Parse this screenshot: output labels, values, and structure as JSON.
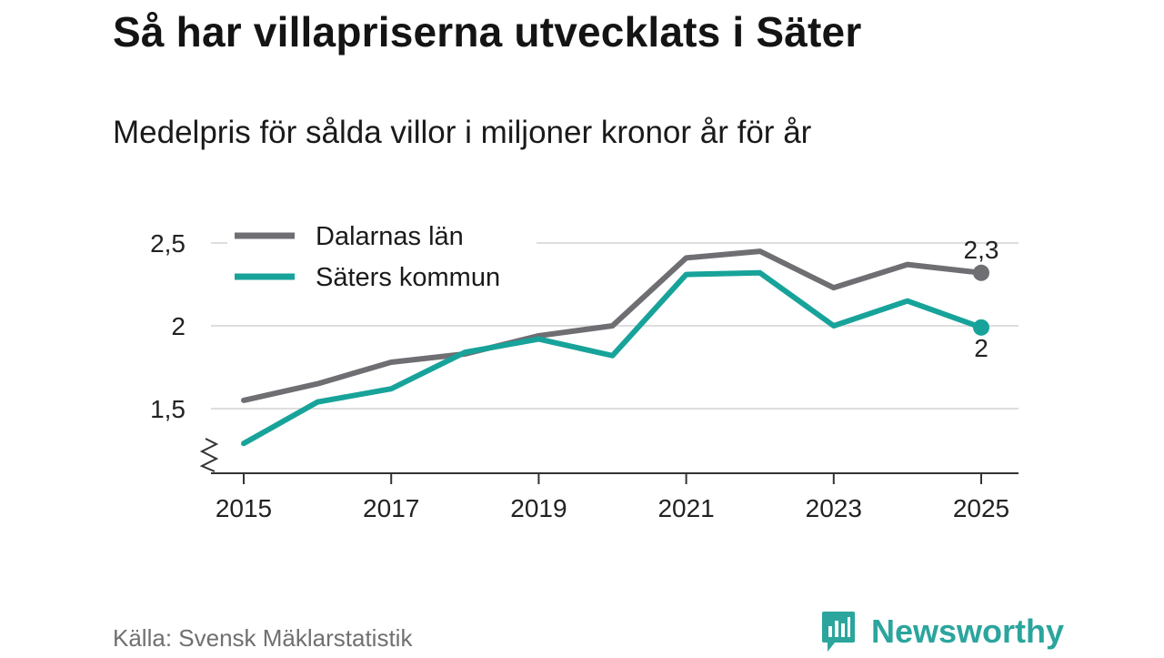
{
  "header": {
    "title": "Så har villapriserna utvecklats i Säter",
    "subtitle": "Medelpris för sålda villor i miljoner kronor år för år"
  },
  "footer": {
    "source": "Källa: Svensk Mäklarstatistik",
    "brand": "Newsworthy"
  },
  "colors": {
    "dalarna": "#6e6e73",
    "sater": "#17a39a",
    "grid": "#dedede",
    "axis": "#333333",
    "brand": "#2ba59d"
  },
  "chart_data": {
    "type": "line",
    "title": "Så har villapriserna utvecklats i Säter",
    "subtitle": "Medelpris för sålda villor i miljoner kronor år för år",
    "xlabel": "",
    "ylabel": "",
    "x": [
      2015,
      2016,
      2017,
      2018,
      2019,
      2020,
      2021,
      2022,
      2023,
      2024,
      2025
    ],
    "x_ticks": [
      "2015",
      "2017",
      "2019",
      "2021",
      "2023",
      "2025"
    ],
    "y_ticks": [
      {
        "value": 1.5,
        "label": "1,5"
      },
      {
        "value": 2.0,
        "label": "2"
      },
      {
        "value": 2.5,
        "label": "2,5"
      }
    ],
    "ylim": [
      1.18,
      2.6
    ],
    "axis_break": true,
    "grid": true,
    "legend_position": "top-left",
    "series": [
      {
        "name": "Dalarnas län",
        "color_key": "dalarna",
        "values": [
          1.55,
          1.65,
          1.78,
          1.83,
          1.94,
          2.0,
          2.41,
          2.45,
          2.23,
          2.37,
          2.32
        ],
        "end_label": "2,3"
      },
      {
        "name": "Säters kommun",
        "color_key": "sater",
        "values": [
          1.29,
          1.54,
          1.62,
          1.84,
          1.92,
          1.82,
          2.31,
          2.32,
          2.0,
          2.15,
          1.99
        ],
        "end_label": "2"
      }
    ]
  }
}
